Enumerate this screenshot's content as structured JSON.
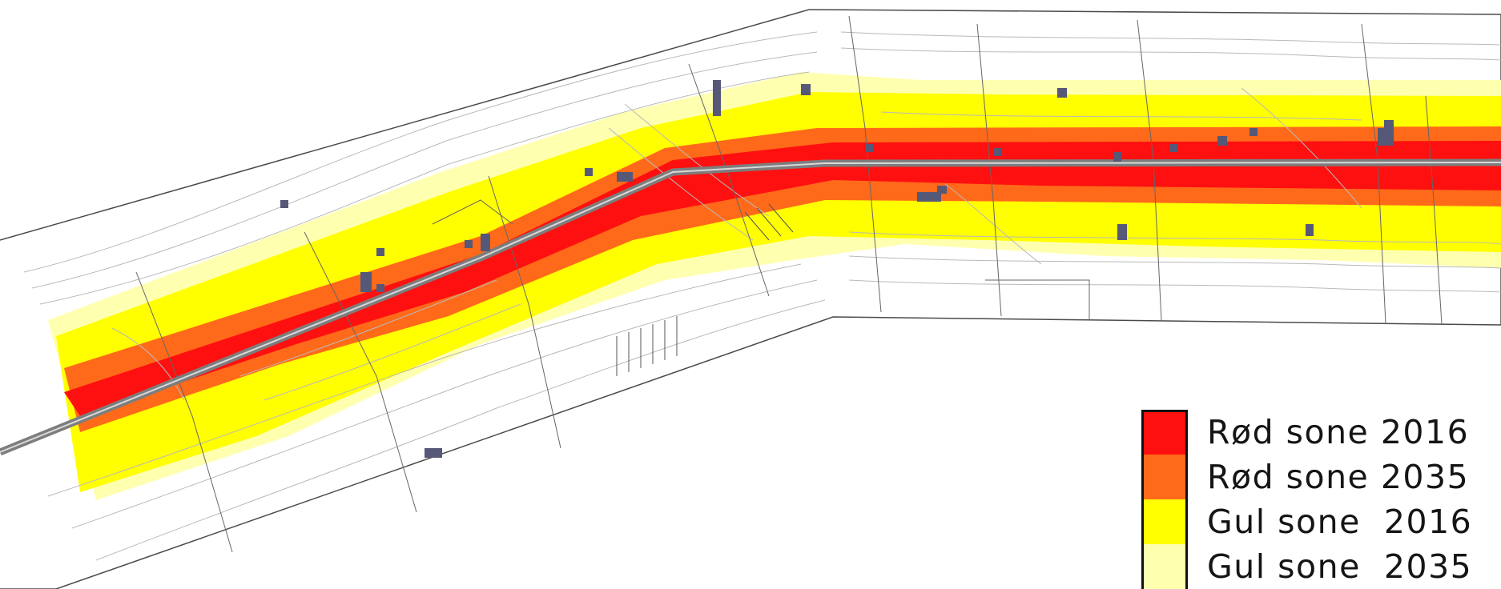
{
  "map": {
    "colors": {
      "background": "#ffffff",
      "road": "#7d7d7d",
      "building": "#565878",
      "contour": "#b9b9b9",
      "boundary": "#4a4a4a"
    }
  },
  "legend": {
    "items": [
      {
        "label": "Rød sone 2016",
        "color": "#ff1010"
      },
      {
        "label": "Rød sone 2035",
        "color": "#ff6a1a"
      },
      {
        "label": "Gul sone  2016",
        "color": "#ffff00"
      },
      {
        "label": "Gul sone  2035",
        "color": "#ffffb0"
      }
    ]
  }
}
